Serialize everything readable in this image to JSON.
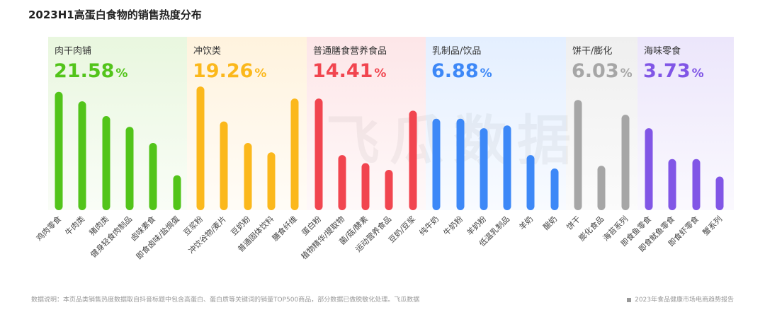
{
  "title": "2023H1高蛋白食物的销售热度分布",
  "footnote": "数据说明：本页品类销售热度数据取自抖音标题中包含高蛋白、蛋白质等关键词的销量TOP500商品，部分数据已做脱敏化处理。飞瓜数据",
  "source": "2023年食品健康市场电商趋势报告",
  "watermark": "飞瓜数据",
  "chart_data": {
    "type": "bar",
    "ylim": [
      0,
      100
    ],
    "groups": [
      {
        "name": "肉干肉铺",
        "share": "21.58",
        "color": "#52c41a",
        "bg": "#e9f7df",
        "categories": [
          "鸡肉零食",
          "牛肉类",
          "猪肉类",
          "健身轻食肉制品",
          "卤味素食",
          "即食卤味/盐焗蛋"
        ],
        "values": [
          88,
          81,
          70,
          62,
          50,
          26
        ]
      },
      {
        "name": "冲饮类",
        "share": "19.26",
        "color": "#fbb81c",
        "bg": "#fff3de",
        "categories": [
          "豆浆粉",
          "冲饮谷物/麦片",
          "豆奶粉",
          "普通固体饮料",
          "膳食纤维"
        ],
        "values": [
          92,
          66,
          50,
          43,
          83
        ]
      },
      {
        "name": "普通膳食营养食品",
        "share": "14.41",
        "color": "#f1454f",
        "bg": "#fde6e8",
        "categories": [
          "蛋白粉",
          "植物精华/提取物",
          "菌/菇/酵素",
          "运动营养食品",
          "豆奶/豆浆"
        ],
        "values": [
          83,
          41,
          35,
          30,
          74
        ]
      },
      {
        "name": "乳制品/饮品",
        "share": "6.88",
        "color": "#3d88f7",
        "bg": "#e4efff",
        "categories": [
          "纯牛奶",
          "牛奶粉",
          "羊奶粉",
          "低温乳制品",
          "羊奶",
          "酸奶"
        ],
        "values": [
          68,
          68,
          61,
          63,
          41,
          31
        ]
      },
      {
        "name": "饼干/膨化",
        "share": "6.03",
        "color": "#a6a6a6",
        "bg": "#efefef",
        "categories": [
          "饼干",
          "膨化食品",
          "海苔系列"
        ],
        "values": [
          82,
          33,
          71
        ]
      },
      {
        "name": "海味零食",
        "share": "3.73",
        "color": "#8156e6",
        "bg": "#ece6fb",
        "categories": [
          "即食鱼零食",
          "即食鱿鱼零食",
          "即食虾零食",
          "蟹系列"
        ],
        "values": [
          61,
          38,
          38,
          25
        ]
      }
    ]
  }
}
